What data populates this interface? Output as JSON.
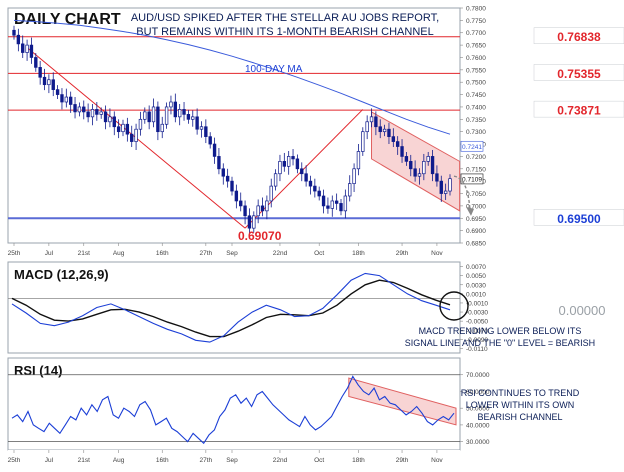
{
  "chart_data": [
    {
      "type": "candlestick",
      "title": "DAILY CHART",
      "headline_lines": [
        "AUD/USD SPIKED AFTER THE STELLAR AU JOBS REPORT,",
        "BUT REMAINS WITHIN ITS 1-MONTH BEARISH CHANNEL"
      ],
      "ylim": [
        0.685,
        0.78
      ],
      "y_ticks": [
        "0.7800",
        "0.7750",
        "0.7700",
        "0.7650",
        "0.7600",
        "0.7550",
        "0.7500",
        "0.7450",
        "0.7400",
        "0.7350",
        "0.7300",
        "0.7250",
        "0.7200",
        "0.7150",
        "0.7100",
        "0.7050",
        "0.7000",
        "0.6950",
        "0.6900",
        "0.6850"
      ],
      "x_ticks": [
        "25th",
        "Jul",
        "21st",
        "Aug",
        "16th",
        "27th",
        "Sep",
        "22nd",
        "Oct",
        "18th",
        "29th",
        "Nov"
      ],
      "closes": [
        0.769,
        0.7655,
        0.762,
        0.765,
        0.76,
        0.756,
        0.752,
        0.749,
        0.751,
        0.747,
        0.745,
        0.742,
        0.744,
        0.741,
        0.738,
        0.74,
        0.738,
        0.736,
        0.739,
        0.737,
        0.738,
        0.734,
        0.736,
        0.732,
        0.73,
        0.733,
        0.729,
        0.726,
        0.731,
        0.735,
        0.738,
        0.734,
        0.74,
        0.73,
        0.733,
        0.74,
        0.742,
        0.736,
        0.739,
        0.737,
        0.735,
        0.736,
        0.731,
        0.732,
        0.728,
        0.725,
        0.72,
        0.715,
        0.712,
        0.71,
        0.706,
        0.702,
        0.7,
        0.696,
        0.691,
        0.696,
        0.7,
        0.698,
        0.702,
        0.708,
        0.713,
        0.718,
        0.716,
        0.72,
        0.719,
        0.715,
        0.713,
        0.71,
        0.708,
        0.706,
        0.704,
        0.7,
        0.699,
        0.702,
        0.701,
        0.698,
        0.704,
        0.709,
        0.715,
        0.722,
        0.73,
        0.734,
        0.736,
        0.732,
        0.73,
        0.731,
        0.728,
        0.726,
        0.724,
        0.72,
        0.718,
        0.715,
        0.712,
        0.713,
        0.718,
        0.72,
        0.713,
        0.71,
        0.705,
        0.706,
        0.711
      ],
      "series": [
        {
          "name": "100-DAY MA",
          "color": "#3b5bdb",
          "values": [
            0.775,
            0.7745,
            0.7738,
            0.773,
            0.7718,
            0.7705,
            0.769,
            0.7672,
            0.7652,
            0.763,
            0.7605,
            0.7578,
            0.755,
            0.752,
            0.7488,
            0.7455,
            0.742,
            0.7385,
            0.735,
            0.7318,
            0.729
          ]
        }
      ],
      "horizontal_levels": [
        {
          "value": 0.76838,
          "label": "0.76838"
        },
        {
          "value": 0.75355,
          "label": "0.75355"
        },
        {
          "value": 0.73871,
          "label": "0.73871"
        },
        {
          "value": 0.695,
          "label": "0.69500"
        }
      ],
      "annotations": {
        "low_label": "0.69070",
        "ma_label": "100-DAY MA",
        "current_box_top": "0.7241",
        "current_box_bottom": "0.7109"
      }
    },
    {
      "type": "line",
      "title": "MACD (12,26,9)",
      "ylim": [
        -0.012,
        0.008
      ],
      "y_ticks": [
        "0.0070",
        "0.0050",
        "0.0030",
        "0.0010",
        "-0.0010",
        "-0.0030",
        "-0.0050",
        "-0.0070",
        "-0.0090",
        "-0.0110"
      ],
      "zero_label": "0.00000",
      "series": [
        {
          "name": "MACD",
          "color": "#1c3fd6",
          "values": [
            -0.0012,
            -0.0032,
            -0.0055,
            -0.006,
            -0.0052,
            -0.0038,
            -0.002,
            -0.0012,
            -0.0025,
            -0.004,
            -0.0055,
            -0.0068,
            -0.0078,
            -0.0092,
            -0.0096,
            -0.0082,
            -0.0052,
            -0.003,
            -0.0015,
            -0.0025,
            -0.004,
            -0.0038,
            -0.0022,
            0.0008,
            0.004,
            0.0055,
            0.005,
            0.003,
            0.001,
            -0.0005,
            -0.0015,
            -0.0025
          ]
        },
        {
          "name": "Signal",
          "color": "#111111",
          "values": [
            0.0,
            -0.0015,
            -0.0035,
            -0.0048,
            -0.005,
            -0.0045,
            -0.0035,
            -0.0025,
            -0.0024,
            -0.003,
            -0.004,
            -0.0052,
            -0.0062,
            -0.0074,
            -0.0084,
            -0.0084,
            -0.0072,
            -0.0058,
            -0.0042,
            -0.0035,
            -0.0036,
            -0.0038,
            -0.0032,
            -0.0015,
            0.001,
            0.003,
            0.004,
            0.0035,
            0.0022,
            0.0008,
            -0.0004,
            -0.0014
          ]
        }
      ],
      "annotation_lines": [
        "MACD TRENDING LOWER BELOW ITS",
        "SIGNAL LINE AND THE \"0\" LEVEL = BEARISH"
      ]
    },
    {
      "type": "line",
      "title": "RSI (14)",
      "ylim": [
        25,
        80
      ],
      "y_ticks": [
        "70.0000",
        "60.0000",
        "50.0000",
        "40.0000",
        "30.0000"
      ],
      "series": [
        {
          "name": "RSI",
          "color": "#1c3fd6",
          "values": [
            44,
            46,
            42,
            48,
            40,
            38,
            36,
            41,
            38,
            35,
            40,
            45,
            43,
            50,
            46,
            52,
            48,
            55,
            57,
            46,
            44,
            50,
            48,
            45,
            52,
            54,
            49,
            40,
            42,
            44,
            38,
            36,
            33,
            30,
            35,
            32,
            29,
            34,
            37,
            45,
            49,
            56,
            58,
            53,
            56,
            51,
            58,
            60,
            56,
            52,
            49,
            46,
            43,
            41,
            39,
            45,
            40,
            37,
            39,
            42,
            45,
            51,
            57,
            62,
            69,
            64,
            60,
            58,
            62,
            55,
            57,
            53,
            52,
            49,
            46,
            48,
            51,
            47,
            42,
            40,
            43,
            45,
            43,
            47
          ]
        }
      ],
      "levels": [
        70,
        30
      ],
      "annotation_lines": [
        "RSI CONTINUES TO TREND",
        "LOWER WITHIN ITS OWN",
        "BEARISH CHANNEL"
      ]
    }
  ]
}
